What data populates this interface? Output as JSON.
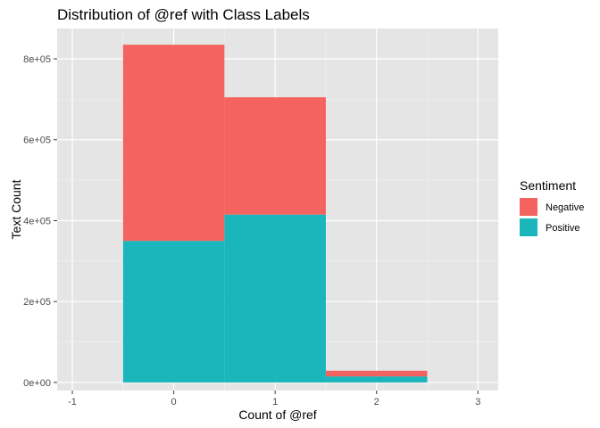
{
  "chart_data": {
    "type": "bar",
    "title": "Distribution of @ref with Class Labels",
    "xlabel": "Count of @ref",
    "ylabel": "Text Count",
    "x": [
      0,
      1,
      2
    ],
    "bin_width": 1,
    "series": [
      {
        "name": "Positive",
        "values": [
          350000,
          415000,
          15000
        ],
        "color": "#1bb6bc"
      },
      {
        "name": "Negative",
        "values": [
          485000,
          290000,
          14000
        ],
        "color": "#f4635f"
      }
    ],
    "stacked": true,
    "xlim": [
      -1.15,
      3.2
    ],
    "ylim": [
      -20000,
      875000
    ],
    "x_ticks": [
      -1,
      0,
      1,
      2,
      3
    ],
    "x_tick_labels": [
      "-1",
      "0",
      "1",
      "2",
      "3"
    ],
    "y_ticks": [
      0,
      200000,
      400000,
      600000,
      800000
    ],
    "y_tick_labels": [
      "0e+00",
      "2e+05",
      "4e+05",
      "6e+05",
      "8e+05"
    ],
    "grid": true,
    "panel_background": "#e5e5e5",
    "legend": {
      "title": "Sentiment",
      "position": "right",
      "entries": [
        {
          "label": "Negative",
          "color": "#f4635f"
        },
        {
          "label": "Positive",
          "color": "#1bb6bc"
        }
      ]
    }
  }
}
